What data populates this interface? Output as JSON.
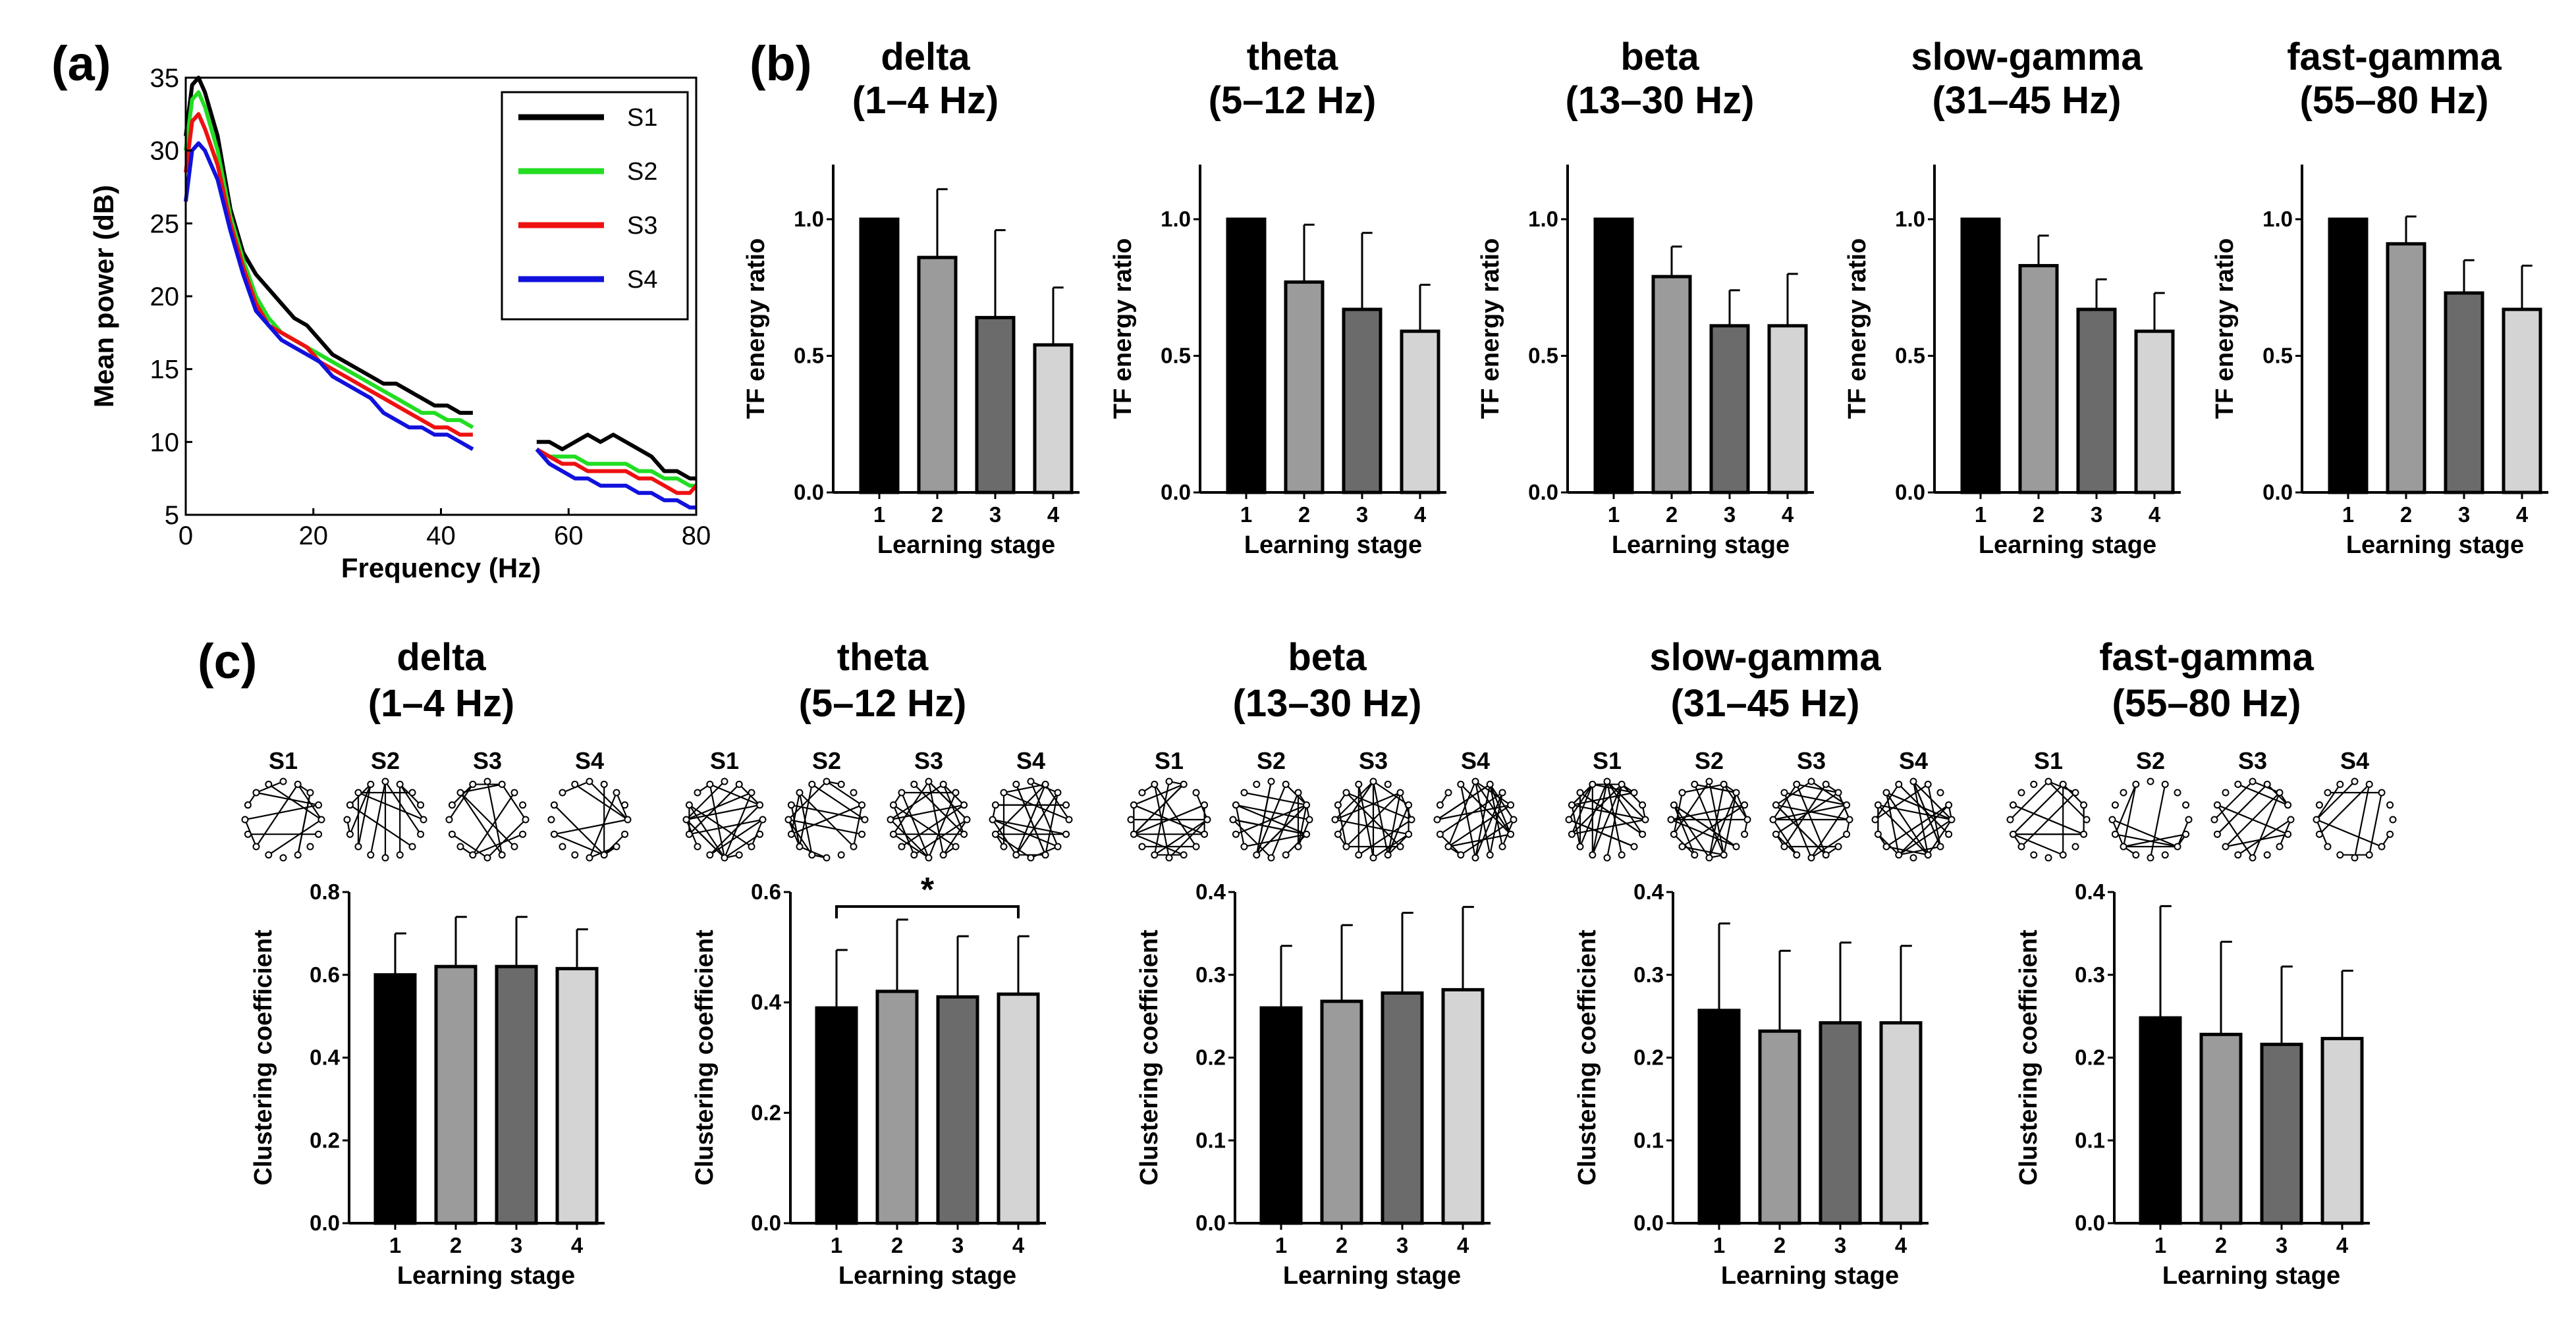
{
  "panel_labels": {
    "a": "(a)",
    "b": "(b)",
    "c": "(c)"
  },
  "chart_data": [
    {
      "id": "a",
      "type": "line",
      "xlabel": "Frequency (Hz)",
      "ylabel": "Mean power (dB)",
      "xlim": [
        0,
        80
      ],
      "ylim": [
        5,
        35
      ],
      "xticks": [
        0,
        20,
        40,
        60,
        80
      ],
      "yticks": [
        5,
        10,
        15,
        20,
        25,
        30,
        35
      ],
      "x_ranges": [
        [
          0,
          45
        ],
        [
          55,
          80
        ]
      ],
      "legend_position": "top-right",
      "series": [
        {
          "name": "S1",
          "color": "#000000",
          "seg1": [
            [
              0,
              31
            ],
            [
              1,
              34.5
            ],
            [
              2,
              35
            ],
            [
              3,
              34
            ],
            [
              5,
              31
            ],
            [
              7,
              26
            ],
            [
              9,
              23
            ],
            [
              11,
              21.5
            ],
            [
              13,
              20.5
            ],
            [
              15,
              19.5
            ],
            [
              17,
              18.5
            ],
            [
              19,
              18
            ],
            [
              21,
              17
            ],
            [
              23,
              16
            ],
            [
              25,
              15.5
            ],
            [
              27,
              15
            ],
            [
              29,
              14.5
            ],
            [
              31,
              14
            ],
            [
              33,
              14
            ],
            [
              35,
              13.5
            ],
            [
              37,
              13
            ],
            [
              39,
              12.5
            ],
            [
              41,
              12.5
            ],
            [
              43,
              12
            ],
            [
              45,
              12
            ]
          ],
          "seg2": [
            [
              55,
              10
            ],
            [
              57,
              10
            ],
            [
              59,
              9.5
            ],
            [
              61,
              10
            ],
            [
              63,
              10.5
            ],
            [
              65,
              10
            ],
            [
              67,
              10.5
            ],
            [
              69,
              10
            ],
            [
              71,
              9.5
            ],
            [
              73,
              9
            ],
            [
              75,
              8
            ],
            [
              77,
              8
            ],
            [
              79,
              7.5
            ],
            [
              80,
              7.5
            ]
          ]
        },
        {
          "name": "S2",
          "color": "#22dd22",
          "seg1": [
            [
              0,
              30
            ],
            [
              1,
              33.5
            ],
            [
              2,
              34
            ],
            [
              3,
              33
            ],
            [
              5,
              30
            ],
            [
              7,
              25.5
            ],
            [
              9,
              22.5
            ],
            [
              11,
              20
            ],
            [
              13,
              18.5
            ],
            [
              15,
              17.5
            ],
            [
              17,
              17
            ],
            [
              19,
              16.5
            ],
            [
              21,
              16
            ],
            [
              23,
              15.5
            ],
            [
              25,
              15
            ],
            [
              27,
              14.5
            ],
            [
              29,
              14
            ],
            [
              31,
              13.5
            ],
            [
              33,
              13
            ],
            [
              35,
              12.5
            ],
            [
              37,
              12
            ],
            [
              39,
              12
            ],
            [
              41,
              11.5
            ],
            [
              43,
              11.5
            ],
            [
              45,
              11
            ]
          ],
          "seg2": [
            [
              55,
              9.5
            ],
            [
              57,
              9
            ],
            [
              59,
              9
            ],
            [
              61,
              9
            ],
            [
              63,
              8.5
            ],
            [
              65,
              8.5
            ],
            [
              67,
              8.5
            ],
            [
              69,
              8.5
            ],
            [
              71,
              8
            ],
            [
              73,
              8
            ],
            [
              75,
              7.5
            ],
            [
              77,
              7.5
            ],
            [
              79,
              7
            ],
            [
              80,
              7
            ]
          ]
        },
        {
          "name": "S3",
          "color": "#ee1111",
          "seg1": [
            [
              0,
              28.5
            ],
            [
              1,
              32
            ],
            [
              2,
              32.5
            ],
            [
              3,
              31.5
            ],
            [
              5,
              29
            ],
            [
              7,
              25
            ],
            [
              9,
              22
            ],
            [
              11,
              19.5
            ],
            [
              13,
              18
            ],
            [
              15,
              17.5
            ],
            [
              17,
              17
            ],
            [
              19,
              16.5
            ],
            [
              21,
              15.5
            ],
            [
              23,
              15
            ],
            [
              25,
              14.5
            ],
            [
              27,
              14
            ],
            [
              29,
              13.5
            ],
            [
              31,
              13
            ],
            [
              33,
              12.5
            ],
            [
              35,
              12
            ],
            [
              37,
              11.5
            ],
            [
              39,
              11
            ],
            [
              41,
              11
            ],
            [
              43,
              10.5
            ],
            [
              45,
              10.5
            ]
          ],
          "seg2": [
            [
              55,
              9.5
            ],
            [
              57,
              9
            ],
            [
              59,
              8.5
            ],
            [
              61,
              8.5
            ],
            [
              63,
              8
            ],
            [
              65,
              8
            ],
            [
              67,
              8
            ],
            [
              69,
              8
            ],
            [
              71,
              7.5
            ],
            [
              73,
              7.5
            ],
            [
              75,
              7
            ],
            [
              77,
              6.5
            ],
            [
              79,
              6.5
            ],
            [
              80,
              7
            ]
          ]
        },
        {
          "name": "S4",
          "color": "#1111dd",
          "seg1": [
            [
              0,
              26.5
            ],
            [
              1,
              30
            ],
            [
              2,
              30.5
            ],
            [
              3,
              30
            ],
            [
              5,
              28
            ],
            [
              7,
              24.5
            ],
            [
              9,
              21.5
            ],
            [
              11,
              19
            ],
            [
              13,
              18
            ],
            [
              15,
              17
            ],
            [
              17,
              16.5
            ],
            [
              19,
              16
            ],
            [
              21,
              15.5
            ],
            [
              23,
              14.5
            ],
            [
              25,
              14
            ],
            [
              27,
              13.5
            ],
            [
              29,
              13
            ],
            [
              31,
              12
            ],
            [
              33,
              11.5
            ],
            [
              35,
              11
            ],
            [
              37,
              11
            ],
            [
              39,
              10.5
            ],
            [
              41,
              10.5
            ],
            [
              43,
              10
            ],
            [
              45,
              9.5
            ]
          ],
          "seg2": [
            [
              55,
              9.5
            ],
            [
              57,
              8.5
            ],
            [
              59,
              8
            ],
            [
              61,
              7.5
            ],
            [
              63,
              7.5
            ],
            [
              65,
              7
            ],
            [
              67,
              7
            ],
            [
              69,
              7
            ],
            [
              71,
              6.5
            ],
            [
              73,
              6.5
            ],
            [
              75,
              6
            ],
            [
              77,
              6
            ],
            [
              79,
              5.5
            ],
            [
              80,
              5.5
            ]
          ]
        }
      ]
    },
    {
      "id": "b",
      "type": "bar",
      "ylabel": "TF energy ratio",
      "xlabel": "Learning stage",
      "categories": [
        "1",
        "2",
        "3",
        "4"
      ],
      "ylim": [
        0,
        1.2
      ],
      "yticks": [
        "0.0",
        "0.5",
        "1.0"
      ],
      "bar_colors": [
        "#000000",
        "#9b9b9b",
        "#6b6b6b",
        "#d4d4d4"
      ],
      "panels": [
        {
          "title_line1": "delta",
          "title_line2": "(1–4 Hz)",
          "values": [
            1.0,
            0.86,
            0.64,
            0.54
          ],
          "errors": [
            0,
            0.25,
            0.32,
            0.21
          ]
        },
        {
          "title_line1": "theta",
          "title_line2": "(5–12 Hz)",
          "values": [
            1.0,
            0.77,
            0.67,
            0.59
          ],
          "errors": [
            0,
            0.21,
            0.28,
            0.17
          ]
        },
        {
          "title_line1": "beta",
          "title_line2": "(13–30 Hz)",
          "values": [
            1.0,
            0.79,
            0.61,
            0.61
          ],
          "errors": [
            0,
            0.11,
            0.13,
            0.19
          ]
        },
        {
          "title_line1": "slow-gamma",
          "title_line2": "(31–45 Hz)",
          "values": [
            1.0,
            0.83,
            0.67,
            0.59
          ],
          "errors": [
            0,
            0.11,
            0.11,
            0.14
          ]
        },
        {
          "title_line1": "fast-gamma",
          "title_line2": "(55–80 Hz)",
          "values": [
            1.0,
            0.91,
            0.73,
            0.67
          ],
          "errors": [
            0,
            0.1,
            0.12,
            0.16
          ]
        }
      ]
    },
    {
      "id": "c",
      "type": "bar",
      "ylabel": "Clustering coefficient",
      "xlabel": "Learning stage",
      "categories": [
        "1",
        "2",
        "3",
        "4"
      ],
      "stage_labels": [
        "S1",
        "S2",
        "S3",
        "S4"
      ],
      "bar_colors": [
        "#000000",
        "#9b9b9b",
        "#6b6b6b",
        "#d4d4d4"
      ],
      "panels": [
        {
          "title_line1": "delta",
          "title_line2": "(1–4 Hz)",
          "ylim": [
            0,
            0.8
          ],
          "yticks": [
            "0.0",
            "0.2",
            "0.4",
            "0.6",
            "0.8"
          ],
          "values": [
            0.6,
            0.62,
            0.62,
            0.615
          ],
          "errors": [
            0.1,
            0.12,
            0.12,
            0.095
          ],
          "density": 12
        },
        {
          "title_line1": "theta",
          "title_line2": "(5–12 Hz)",
          "ylim": [
            0,
            0.6
          ],
          "yticks": [
            "0.0",
            "0.2",
            "0.4",
            "0.6"
          ],
          "values": [
            0.39,
            0.42,
            0.41,
            0.415
          ],
          "errors": [
            0.105,
            0.13,
            0.11,
            0.105
          ],
          "density": 20,
          "significance": {
            "label": "*",
            "from": 1,
            "to": 4
          }
        },
        {
          "title_line1": "beta",
          "title_line2": "(13–30 Hz)",
          "ylim": [
            0,
            0.4
          ],
          "yticks": [
            "0.0",
            "0.1",
            "0.2",
            "0.3",
            "0.4"
          ],
          "values": [
            0.26,
            0.268,
            0.278,
            0.282
          ],
          "errors": [
            0.075,
            0.092,
            0.097,
            0.1
          ],
          "density": 22
        },
        {
          "title_line1": "slow-gamma",
          "title_line2": "(31–45 Hz)",
          "ylim": [
            0,
            0.4
          ],
          "yticks": [
            "0.0",
            "0.1",
            "0.2",
            "0.3",
            "0.4"
          ],
          "values": [
            0.257,
            0.232,
            0.242,
            0.242
          ],
          "errors": [
            0.105,
            0.097,
            0.097,
            0.093
          ],
          "density": 26
        },
        {
          "title_line1": "fast-gamma",
          "title_line2": "(55–80 Hz)",
          "ylim": [
            0,
            0.4
          ],
          "yticks": [
            "0.0",
            "0.1",
            "0.2",
            "0.3",
            "0.4"
          ],
          "values": [
            0.248,
            0.228,
            0.216,
            0.223
          ],
          "errors": [
            0.135,
            0.112,
            0.094,
            0.082
          ],
          "density": 12
        }
      ]
    }
  ]
}
